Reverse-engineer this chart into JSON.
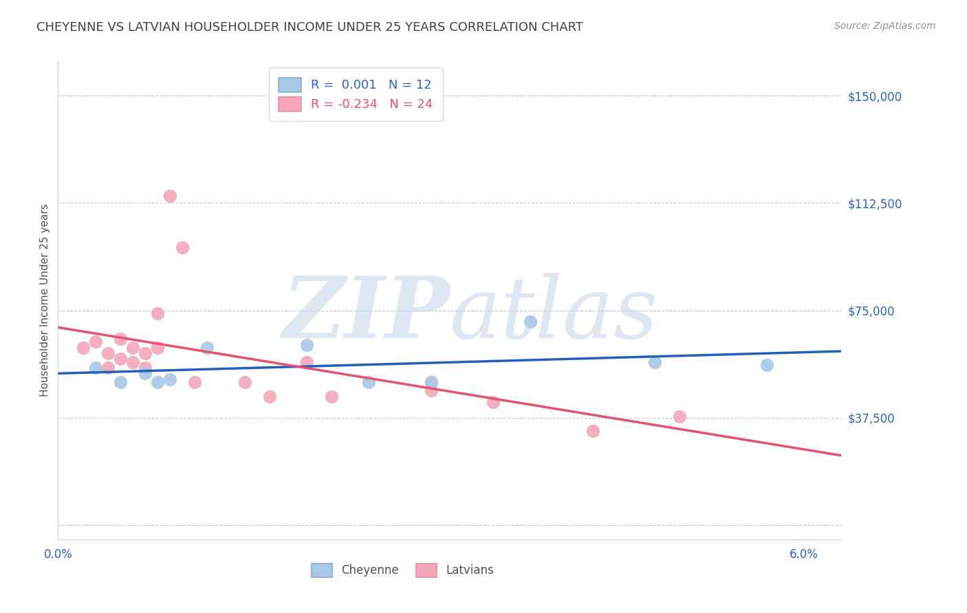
{
  "title": "CHEYENNE VS LATVIAN HOUSEHOLDER INCOME UNDER 25 YEARS CORRELATION CHART",
  "source_text": "Source: ZipAtlas.com",
  "ylabel": "Householder Income Under 25 years",
  "xlim": [
    0.0,
    0.063
  ],
  "ylim": [
    -5000,
    162000
  ],
  "yticks": [
    0,
    37500,
    75000,
    112500,
    150000
  ],
  "ytick_labels": [
    "",
    "$37,500",
    "$75,000",
    "$112,500",
    "$150,000"
  ],
  "xticks": [
    0.0,
    0.01,
    0.02,
    0.03,
    0.04,
    0.05,
    0.06
  ],
  "xtick_labels": [
    "0.0%",
    "",
    "",
    "",
    "",
    "",
    "6.0%"
  ],
  "cheyenne_R": 0.001,
  "cheyenne_N": 12,
  "latvian_R": -0.234,
  "latvian_N": 24,
  "cheyenne_color": "#a8c8e8",
  "latvian_color": "#f4a8b8",
  "cheyenne_line_color": "#2060b8",
  "latvian_line_color": "#e85070",
  "title_color": "#404040",
  "axis_label_color": "#505050",
  "tick_label_color": "#3060c0",
  "grid_color": "#c8c8d8",
  "background_color": "#ffffff",
  "watermark_color": "#dde8f2",
  "source_color": "#909090",
  "cheyenne_x": [
    0.003,
    0.005,
    0.007,
    0.008,
    0.009,
    0.012,
    0.02,
    0.025,
    0.03,
    0.038,
    0.048,
    0.057
  ],
  "cheyenne_y": [
    55000,
    50000,
    53000,
    50000,
    51000,
    62000,
    63000,
    50000,
    50000,
    71000,
    57000,
    56000
  ],
  "latvian_x": [
    0.002,
    0.003,
    0.004,
    0.004,
    0.005,
    0.005,
    0.006,
    0.006,
    0.007,
    0.007,
    0.008,
    0.008,
    0.009,
    0.01,
    0.011,
    0.015,
    0.017,
    0.02,
    0.022,
    0.03,
    0.03,
    0.035,
    0.043,
    0.05
  ],
  "latvian_y": [
    62000,
    64000,
    60000,
    55000,
    58000,
    65000,
    62000,
    57000,
    60000,
    55000,
    62000,
    74000,
    115000,
    97000,
    50000,
    50000,
    45000,
    57000,
    45000,
    50000,
    47000,
    43000,
    33000,
    38000
  ],
  "legend_border_color": "#d8d8e8",
  "dot_size": 180
}
